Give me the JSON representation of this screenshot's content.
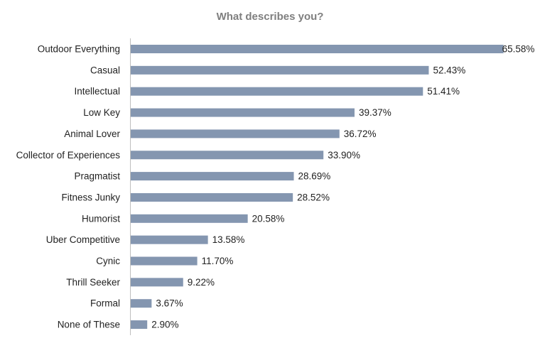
{
  "chart_data": {
    "type": "bar",
    "orientation": "horizontal",
    "title": "What describes you?",
    "categories": [
      "Outdoor Everything",
      "Casual",
      "Intellectual",
      "Low Key",
      "Animal Lover",
      "Collector of Experiences",
      "Pragmatist",
      "Fitness Junky",
      "Humorist",
      "Uber Competitive",
      "Cynic",
      "Thrill Seeker",
      "Formal",
      "None of These"
    ],
    "values": [
      65.58,
      52.43,
      51.41,
      39.37,
      36.72,
      33.9,
      28.69,
      28.52,
      20.58,
      13.58,
      11.7,
      9.22,
      3.67,
      2.9
    ],
    "value_labels": [
      "65.58%",
      "52.43%",
      "51.41%",
      "39.37%",
      "36.72%",
      "33.90%",
      "28.69%",
      "28.52%",
      "20.58%",
      "13.58%",
      "11.70%",
      "9.22%",
      "3.67%",
      "2.90%"
    ],
    "xlim": [
      0,
      70
    ],
    "grid": false,
    "legend": "none",
    "bar_color": "#8496b0",
    "axis_color": "#bfbfbf"
  }
}
